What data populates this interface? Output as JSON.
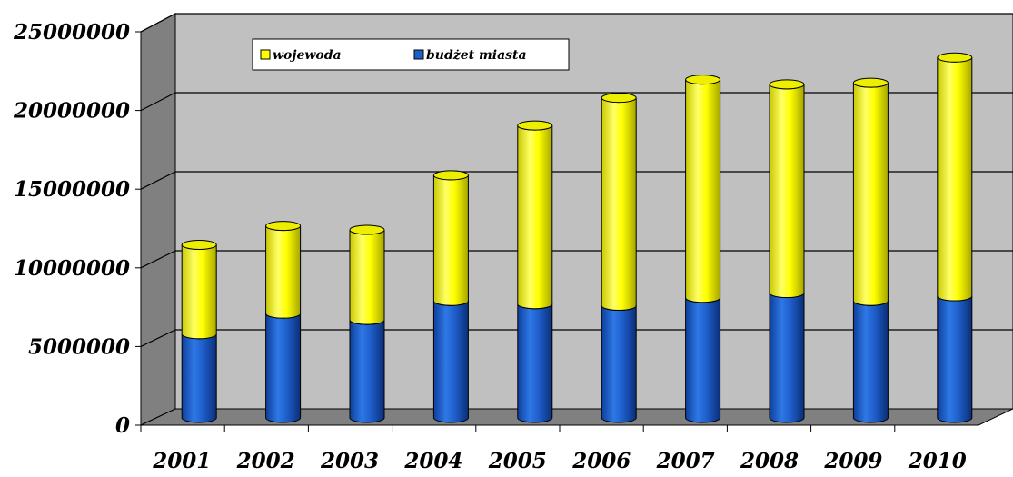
{
  "chart_data": {
    "type": "bar",
    "stacked": true,
    "three_d": true,
    "categories": [
      "2001",
      "2002",
      "2003",
      "2004",
      "2005",
      "2006",
      "2007",
      "2008",
      "2009",
      "2010"
    ],
    "series": [
      {
        "name": "budżet miasta",
        "color": "#1F5FCC",
        "values": [
          5300000,
          6600000,
          6200000,
          7400000,
          7200000,
          7100000,
          7600000,
          7900000,
          7400000,
          7700000
        ]
      },
      {
        "name": "wojewoda",
        "color": "#FFFF00",
        "values": [
          5650000,
          5550000,
          5700000,
          7950000,
          11300000,
          13150000,
          13800000,
          13200000,
          13800000,
          15100000
        ]
      }
    ],
    "yticks": [
      "0",
      "5000000",
      "10000000",
      "15000000",
      "20000000",
      "25000000"
    ],
    "ylim": [
      0,
      25000000
    ],
    "grid": true,
    "legend": {
      "position": "top-left",
      "entries": [
        "wojewoda",
        "budżet miasta"
      ]
    },
    "title": "",
    "xlabel": "",
    "ylabel": ""
  }
}
